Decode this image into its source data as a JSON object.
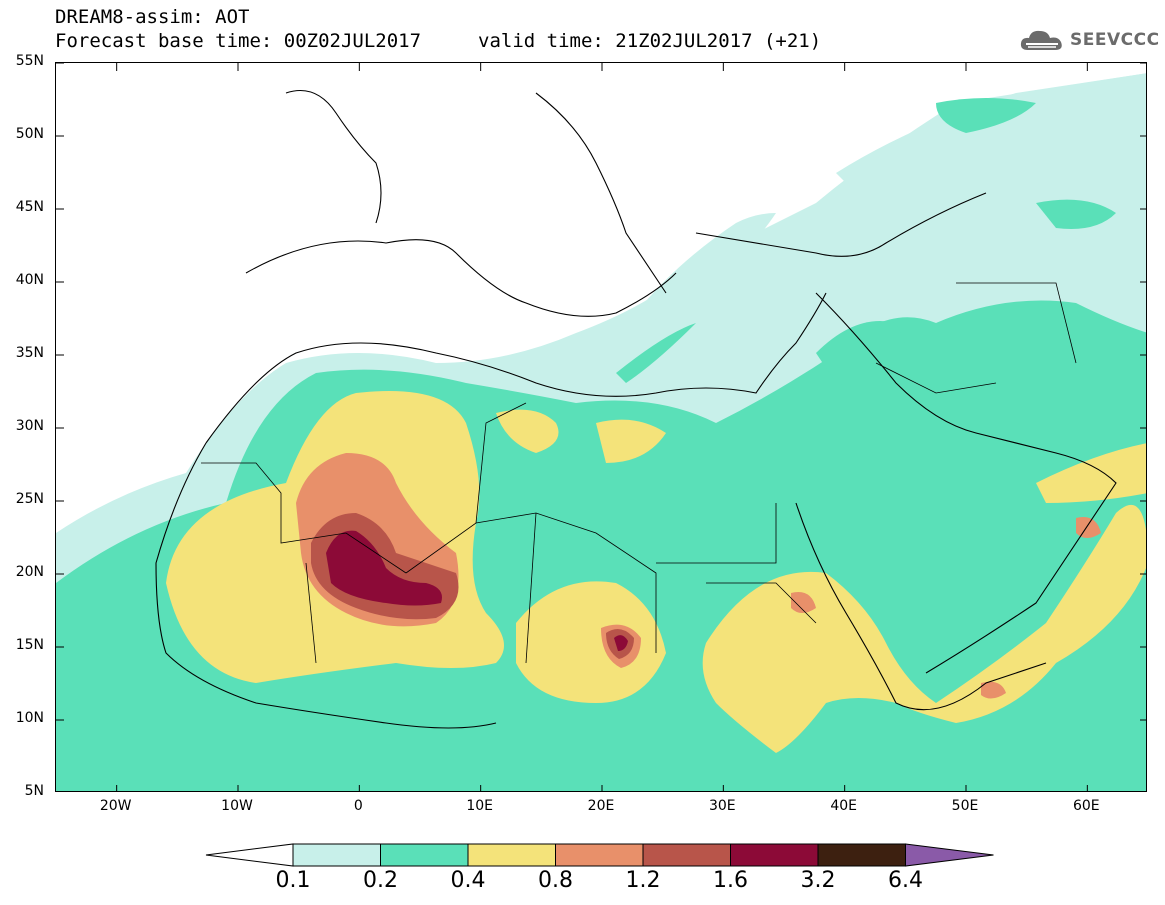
{
  "header": {
    "title": "DREAM8-assim: AOT",
    "forecast_base": "Forecast base time: 00Z02JUL2017",
    "valid_time": "valid time: 21Z02JUL2017 (+21)"
  },
  "logo": {
    "text": "SEEVCCC",
    "icon": "cloud-icon",
    "color": "#6b6b6b"
  },
  "axes": {
    "lat_labels": [
      "55N",
      "50N",
      "45N",
      "40N",
      "35N",
      "30N",
      "25N",
      "20N",
      "15N",
      "10N",
      "5N"
    ],
    "lat_values": [
      55,
      50,
      45,
      40,
      35,
      30,
      25,
      20,
      15,
      10,
      5
    ],
    "lon_labels": [
      "20W",
      "10W",
      "0",
      "10E",
      "20E",
      "30E",
      "40E",
      "50E",
      "60E"
    ],
    "lon_values": [
      -20,
      -10,
      0,
      10,
      20,
      30,
      40,
      50,
      60
    ],
    "lon_range": [
      -25,
      65
    ],
    "lat_range": [
      5,
      55
    ]
  },
  "legend": {
    "labels": [
      "0.1",
      "0.2",
      "0.4",
      "0.8",
      "1.2",
      "1.6",
      "3.2",
      "6.4"
    ],
    "colors": [
      "#ffffff",
      "#c8f0ea",
      "#5ae0b8",
      "#f4e37a",
      "#e8906a",
      "#b8554a",
      "#8c0a37",
      "#3d2010",
      "#8a5aa8"
    ]
  }
}
